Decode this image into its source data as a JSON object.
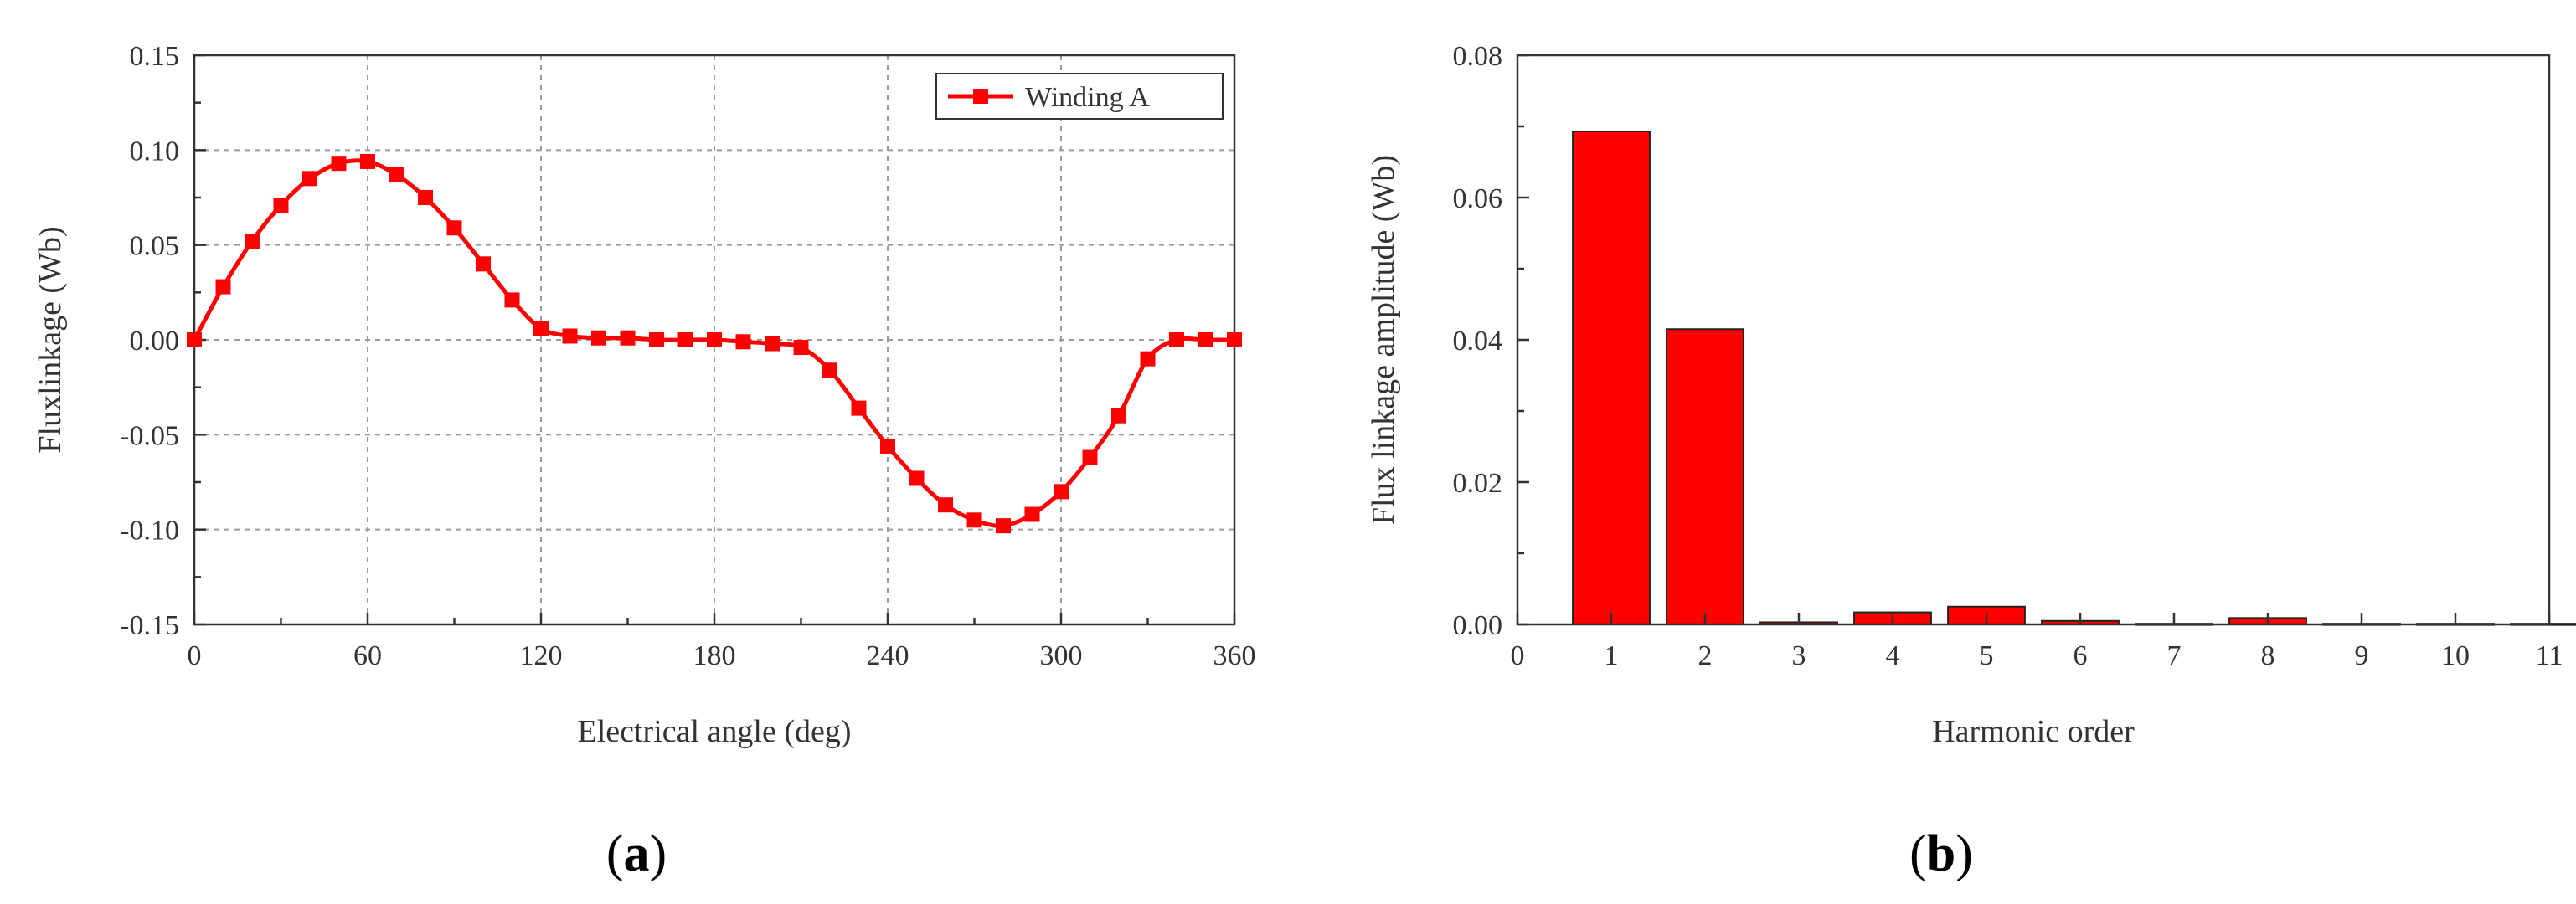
{
  "chart_data": [
    {
      "panel": "a",
      "type": "line",
      "title": "",
      "xlabel": "Electrical angle (deg)",
      "ylabel": "Fluxlinkage (Wb)",
      "xlim": [
        0,
        360
      ],
      "ylim": [
        -0.15,
        0.15
      ],
      "xticks": [
        "0",
        "60",
        "120",
        "180",
        "240",
        "300",
        "360"
      ],
      "yticks": [
        "-0.15",
        "-0.10",
        "-0.05",
        "0.00",
        "0.05",
        "0.10",
        "0.15"
      ],
      "grid": true,
      "legend_position": "top-right",
      "series": [
        {
          "name": "Winding A",
          "color": "#ff0000",
          "marker": "square",
          "x": [
            0,
            10,
            20,
            30,
            40,
            50,
            60,
            70,
            80,
            90,
            100,
            110,
            120,
            130,
            140,
            150,
            160,
            170,
            180,
            190,
            200,
            210,
            220,
            230,
            240,
            250,
            260,
            270,
            280,
            290,
            300,
            310,
            320,
            330,
            340,
            350,
            360
          ],
          "y": [
            0.0,
            0.028,
            0.052,
            0.071,
            0.085,
            0.093,
            0.094,
            0.087,
            0.075,
            0.059,
            0.04,
            0.021,
            0.006,
            0.002,
            0.001,
            0.001,
            0.0,
            0.0,
            0.0,
            -0.001,
            -0.002,
            -0.004,
            -0.016,
            -0.036,
            -0.056,
            -0.073,
            -0.087,
            -0.095,
            -0.098,
            -0.092,
            -0.08,
            -0.062,
            -0.04,
            -0.01,
            0.0,
            0.0,
            0.0
          ]
        }
      ]
    },
    {
      "panel": "b",
      "type": "bar",
      "title": "",
      "xlabel": "Harmonic order",
      "ylabel": "Flux linkage amplitude (Wb)",
      "xlim": [
        0,
        11
      ],
      "ylim": [
        0,
        0.08
      ],
      "xticks": [
        "0",
        "1",
        "2",
        "3",
        "4",
        "5",
        "6",
        "7",
        "8",
        "9",
        "10",
        "11"
      ],
      "yticks": [
        "0.00",
        "0.02",
        "0.04",
        "0.06",
        "0.08"
      ],
      "grid": false,
      "categories": [
        1,
        2,
        3,
        4,
        5,
        6,
        7,
        8,
        9,
        10,
        11
      ],
      "values": [
        0.0693,
        0.0415,
        0.0003,
        0.0017,
        0.0025,
        0.0005,
        0.0001,
        0.0009,
        0.0001,
        0.0001,
        0.0001
      ],
      "color": "#ff0000"
    }
  ],
  "captions": {
    "a": {
      "open": "(",
      "letter": "a",
      "close": ")"
    },
    "b": {
      "open": "(",
      "letter": "b",
      "close": ")"
    }
  }
}
